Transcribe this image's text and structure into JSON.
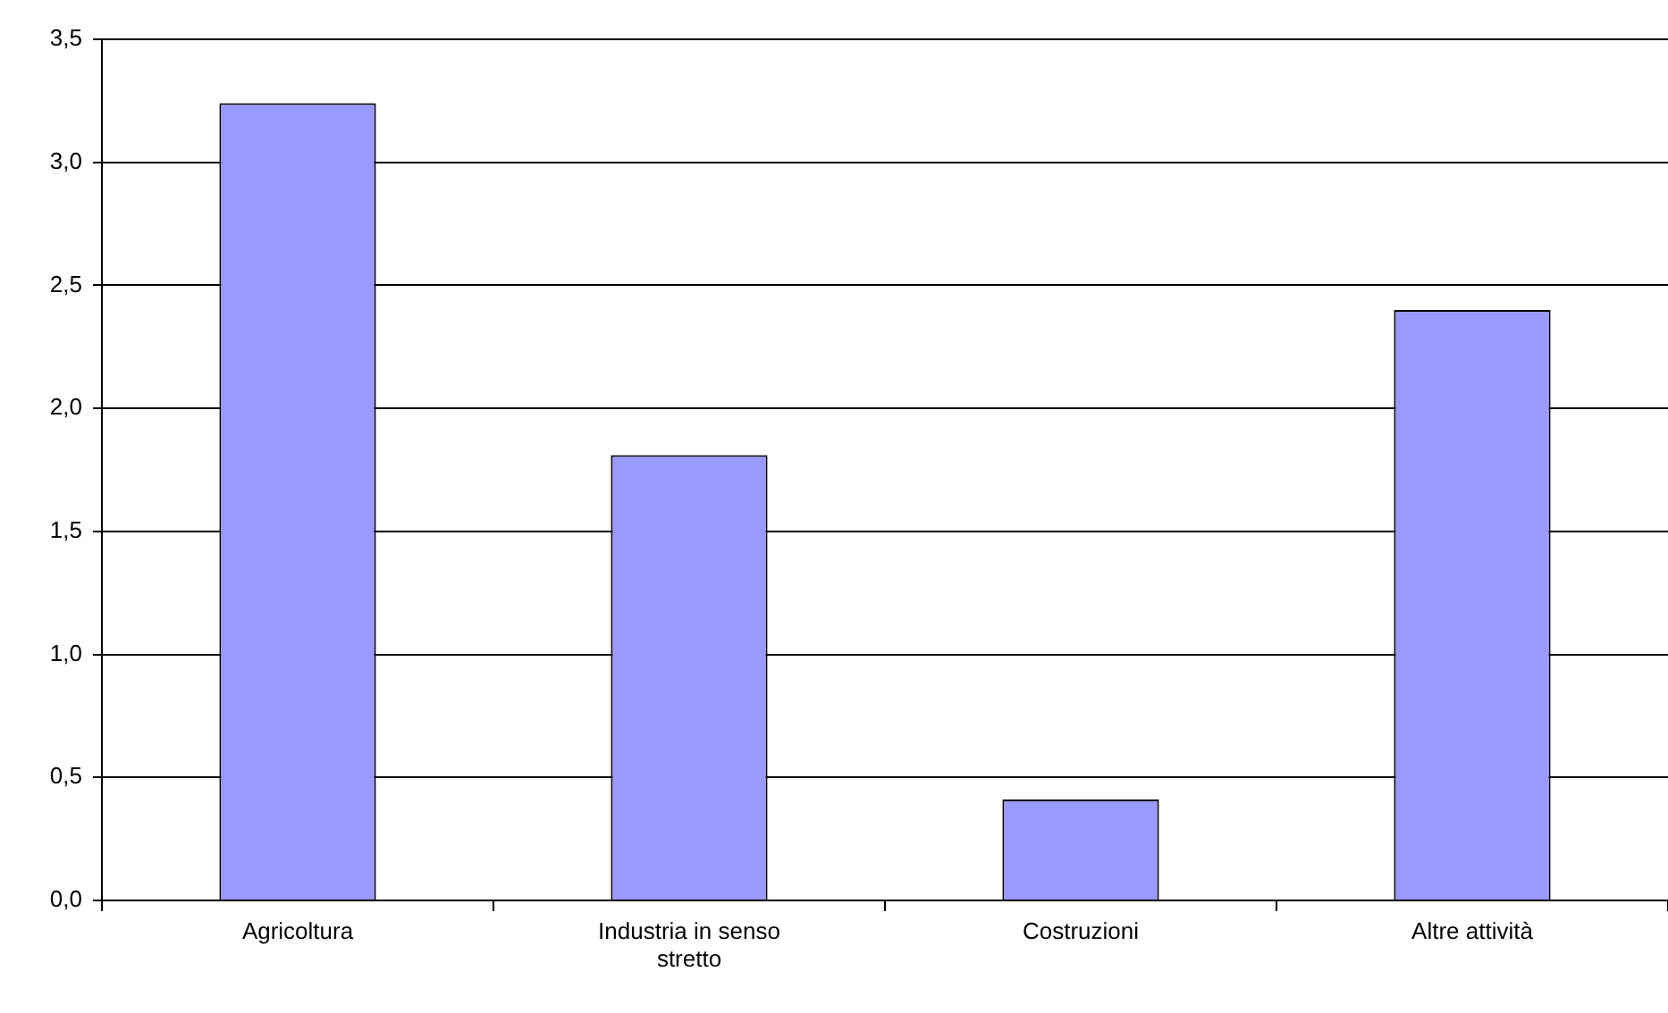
{
  "chart_data": {
    "type": "bar",
    "categories": [
      "Agricoltura",
      "Industria in senso stretto",
      "Costruzioni",
      "Altre attività"
    ],
    "values": [
      3.24,
      1.81,
      0.41,
      2.4
    ],
    "color": "#9999ff",
    "ylim": [
      0,
      3.5
    ],
    "yticks": [
      {
        "value": 0,
        "label": "0,0"
      },
      {
        "value": 0.5,
        "label": "0,5"
      },
      {
        "value": 1,
        "label": "1,0"
      },
      {
        "value": 1.5,
        "label": "1,5"
      },
      {
        "value": 2,
        "label": "2,0"
      },
      {
        "value": 2.5,
        "label": "2,5"
      },
      {
        "value": 3,
        "label": "3,0"
      },
      {
        "value": 3.5,
        "label": "3,5"
      }
    ],
    "grid": "y"
  }
}
